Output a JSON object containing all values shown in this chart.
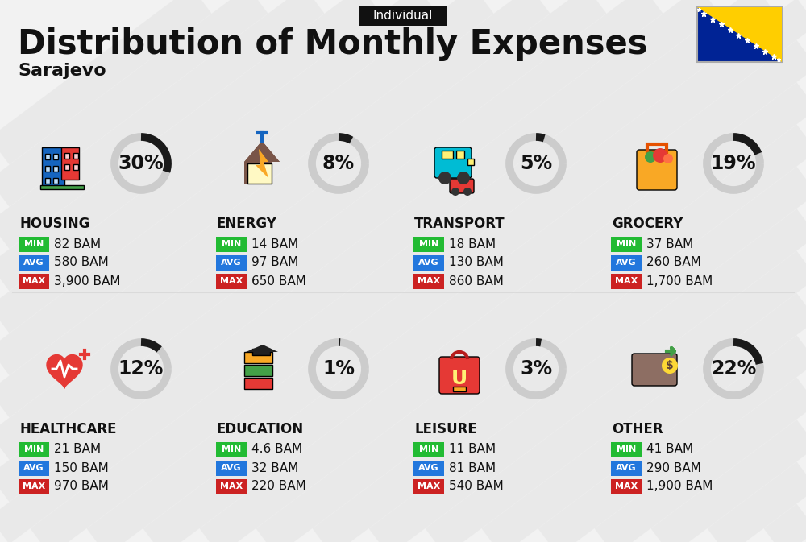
{
  "title": "Distribution of Monthly Expenses",
  "subtitle": "Sarajevo",
  "tag": "Individual",
  "bg_color": "#f2f2f2",
  "stripe_color": "#e0e0e0",
  "categories": [
    {
      "name": "HOUSING",
      "percent": 30,
      "min_val": "82 BAM",
      "avg_val": "580 BAM",
      "max_val": "3,900 BAM",
      "row": 0,
      "col": 0
    },
    {
      "name": "ENERGY",
      "percent": 8,
      "min_val": "14 BAM",
      "avg_val": "97 BAM",
      "max_val": "650 BAM",
      "row": 0,
      "col": 1
    },
    {
      "name": "TRANSPORT",
      "percent": 5,
      "min_val": "18 BAM",
      "avg_val": "130 BAM",
      "max_val": "860 BAM",
      "row": 0,
      "col": 2
    },
    {
      "name": "GROCERY",
      "percent": 19,
      "min_val": "37 BAM",
      "avg_val": "260 BAM",
      "max_val": "1,700 BAM",
      "row": 0,
      "col": 3
    },
    {
      "name": "HEALTHCARE",
      "percent": 12,
      "min_val": "21 BAM",
      "avg_val": "150 BAM",
      "max_val": "970 BAM",
      "row": 1,
      "col": 0
    },
    {
      "name": "EDUCATION",
      "percent": 1,
      "min_val": "4.6 BAM",
      "avg_val": "32 BAM",
      "max_val": "220 BAM",
      "row": 1,
      "col": 1
    },
    {
      "name": "LEISURE",
      "percent": 3,
      "min_val": "11 BAM",
      "avg_val": "81 BAM",
      "max_val": "540 BAM",
      "row": 1,
      "col": 2
    },
    {
      "name": "OTHER",
      "percent": 22,
      "min_val": "41 BAM",
      "avg_val": "290 BAM",
      "max_val": "1,900 BAM",
      "row": 1,
      "col": 3
    }
  ],
  "min_color": "#22bb33",
  "avg_color": "#2277dd",
  "max_color": "#cc2222",
  "ring_filled_color": "#1a1a1a",
  "ring_empty_color": "#cccccc",
  "title_fontsize": 30,
  "subtitle_fontsize": 16,
  "tag_fontsize": 11,
  "category_fontsize": 12,
  "percent_fontsize": 17,
  "value_fontsize": 11,
  "badge_label_fontsize": 8
}
